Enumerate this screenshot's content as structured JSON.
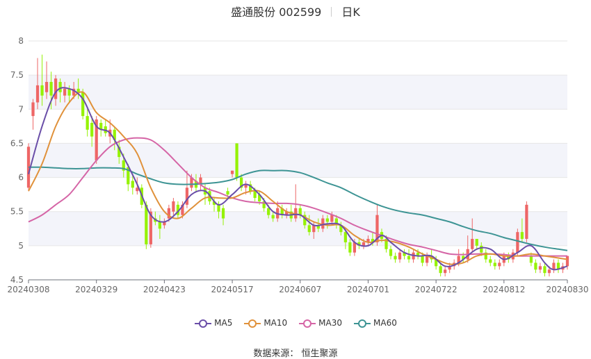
{
  "header": {
    "stock": "盛通股份 002599",
    "period": "日K"
  },
  "source": "数据来源： 恒生聚源",
  "colors": {
    "up": "#ee6666",
    "down": "#95f204",
    "ma5": "#6a4ea8",
    "ma10": "#e0913a",
    "ma30": "#d565a6",
    "ma60": "#3d9494"
  },
  "chart_data": {
    "type": "candlestick",
    "ylim": [
      4.5,
      8
    ],
    "yticks": [
      "4.5",
      "5",
      "5.5",
      "6",
      "6.5",
      "7",
      "7.5",
      "8"
    ],
    "xlabels": [
      "20240308",
      "20240329",
      "20240423",
      "20240517",
      "20240607",
      "20240701",
      "20240722",
      "20240812",
      "20240830"
    ],
    "xlabel_index": [
      0,
      15,
      30,
      45,
      60,
      75,
      90,
      105,
      119
    ],
    "n": 120,
    "legend": [
      "MA5",
      "MA10",
      "MA30",
      "MA60"
    ],
    "candles": [
      [
        5.85,
        6.45,
        5.8,
        6.5
      ],
      [
        6.9,
        7.1,
        6.7,
        7.15
      ],
      [
        7.1,
        7.35,
        7.0,
        7.75
      ],
      [
        7.35,
        7.2,
        7.05,
        7.8
      ],
      [
        7.25,
        7.4,
        7.15,
        7.7
      ],
      [
        7.4,
        7.2,
        7.0,
        7.55
      ],
      [
        7.15,
        7.45,
        7.05,
        7.5
      ],
      [
        7.4,
        7.25,
        7.1,
        7.45
      ],
      [
        7.2,
        7.3,
        7.1,
        7.4
      ],
      [
        7.3,
        7.2,
        7.1,
        7.35
      ],
      [
        7.2,
        7.3,
        7.15,
        7.4
      ],
      [
        7.3,
        7.25,
        7.15,
        7.45
      ],
      [
        7.25,
        6.9,
        6.85,
        7.3
      ],
      [
        6.9,
        6.7,
        6.6,
        7.0
      ],
      [
        6.8,
        6.6,
        6.45,
        6.9
      ],
      [
        6.25,
        6.85,
        6.2,
        6.9
      ],
      [
        6.8,
        6.7,
        6.6,
        6.85
      ],
      [
        6.75,
        6.65,
        6.6,
        6.85
      ],
      [
        6.6,
        6.7,
        6.5,
        6.85
      ],
      [
        6.7,
        6.55,
        6.4,
        6.75
      ],
      [
        6.45,
        6.3,
        6.2,
        6.55
      ],
      [
        6.25,
        6.1,
        6.0,
        6.35
      ],
      [
        6.15,
        5.9,
        5.8,
        6.2
      ],
      [
        5.95,
        5.85,
        5.75,
        6.05
      ],
      [
        5.8,
        5.85,
        5.75,
        6.0
      ],
      [
        5.85,
        5.6,
        5.55,
        5.9
      ],
      [
        5.6,
        5.02,
        4.95,
        5.65
      ],
      [
        5.02,
        5.5,
        4.97,
        5.55
      ],
      [
        5.4,
        5.35,
        5.3,
        5.5
      ],
      [
        5.35,
        5.25,
        5.1,
        5.45
      ],
      [
        5.3,
        5.35,
        5.25,
        5.4
      ],
      [
        5.4,
        5.55,
        5.35,
        5.6
      ],
      [
        5.5,
        5.65,
        5.45,
        5.7
      ],
      [
        5.6,
        5.45,
        5.4,
        5.65
      ],
      [
        5.45,
        5.6,
        5.4,
        5.65
      ],
      [
        5.6,
        5.85,
        5.55,
        6.1
      ],
      [
        5.85,
        6.0,
        5.8,
        6.05
      ],
      [
        5.95,
        5.85,
        5.8,
        6.05
      ],
      [
        5.9,
        6.0,
        5.8,
        6.05
      ],
      [
        5.85,
        5.75,
        5.6,
        5.9
      ],
      [
        5.8,
        5.65,
        5.6,
        5.85
      ],
      [
        5.65,
        5.6,
        5.5,
        5.7
      ],
      [
        5.6,
        5.5,
        5.4,
        5.65
      ],
      [
        5.55,
        5.4,
        5.3,
        5.6
      ],
      [
        5.8,
        5.75,
        5.7,
        5.85
      ],
      [
        6.05,
        6.1,
        6.0,
        6.1
      ],
      [
        6.5,
        6.0,
        5.95,
        6.5
      ],
      [
        6.0,
        5.85,
        5.8,
        6.05
      ],
      [
        5.85,
        5.9,
        5.75,
        5.95
      ],
      [
        5.9,
        5.8,
        5.75,
        5.95
      ],
      [
        5.8,
        5.7,
        5.65,
        5.85
      ],
      [
        5.75,
        5.65,
        5.6,
        5.8
      ],
      [
        5.65,
        5.55,
        5.5,
        5.7
      ],
      [
        5.55,
        5.45,
        5.4,
        5.6
      ],
      [
        5.45,
        5.4,
        5.35,
        5.5
      ],
      [
        5.4,
        5.55,
        5.35,
        5.65
      ],
      [
        5.55,
        5.45,
        5.4,
        5.6
      ],
      [
        5.45,
        5.5,
        5.4,
        5.55
      ],
      [
        5.5,
        5.4,
        5.35,
        5.6
      ],
      [
        5.4,
        5.55,
        5.35,
        5.9
      ],
      [
        5.55,
        5.45,
        5.4,
        5.6
      ],
      [
        5.45,
        5.3,
        5.25,
        5.5
      ],
      [
        5.3,
        5.2,
        5.15,
        5.45
      ],
      [
        5.2,
        5.3,
        5.1,
        5.35
      ],
      [
        5.3,
        5.25,
        5.2,
        5.4
      ],
      [
        5.25,
        5.4,
        5.2,
        5.45
      ],
      [
        5.4,
        5.35,
        5.25,
        5.45
      ],
      [
        5.35,
        5.45,
        5.3,
        5.5
      ],
      [
        5.4,
        5.3,
        5.25,
        5.45
      ],
      [
        5.3,
        5.2,
        5.15,
        5.35
      ],
      [
        5.2,
        5.05,
        4.95,
        5.25
      ],
      [
        5.05,
        4.9,
        4.85,
        5.1
      ],
      [
        4.9,
        5.05,
        4.85,
        5.1
      ],
      [
        5.05,
        5.0,
        4.95,
        5.1
      ],
      [
        5.0,
        5.05,
        4.95,
        5.1
      ],
      [
        5.05,
        5.1,
        5.0,
        5.15
      ],
      [
        5.1,
        5.05,
        5.0,
        5.2
      ],
      [
        5.05,
        5.45,
        5.0,
        5.6
      ],
      [
        5.2,
        5.1,
        5.05,
        5.25
      ],
      [
        5.1,
        4.95,
        4.9,
        5.15
      ],
      [
        4.95,
        4.85,
        4.8,
        5.0
      ],
      [
        4.85,
        4.8,
        4.75,
        4.9
      ],
      [
        4.8,
        4.9,
        4.75,
        4.95
      ],
      [
        4.9,
        4.85,
        4.8,
        4.95
      ],
      [
        4.85,
        4.8,
        4.75,
        4.95
      ],
      [
        4.8,
        4.9,
        4.75,
        4.95
      ],
      [
        4.9,
        4.85,
        4.8,
        4.95
      ],
      [
        4.85,
        4.75,
        4.7,
        4.9
      ],
      [
        4.75,
        4.85,
        4.7,
        4.9
      ],
      [
        4.85,
        4.8,
        4.75,
        4.95
      ],
      [
        4.8,
        4.7,
        4.65,
        4.85
      ],
      [
        4.7,
        4.6,
        4.55,
        4.75
      ],
      [
        4.6,
        4.65,
        4.55,
        4.7
      ],
      [
        4.65,
        4.7,
        4.6,
        4.75
      ],
      [
        4.7,
        4.75,
        4.65,
        4.8
      ],
      [
        4.75,
        4.85,
        4.7,
        4.95
      ],
      [
        4.85,
        4.8,
        4.75,
        4.9
      ],
      [
        4.8,
        4.95,
        4.75,
        5.15
      ],
      [
        4.95,
        5.1,
        4.9,
        5.4
      ],
      [
        5.1,
        5.0,
        4.95,
        5.1
      ],
      [
        5.0,
        4.9,
        4.85,
        5.05
      ],
      [
        4.9,
        4.8,
        4.75,
        4.95
      ],
      [
        4.8,
        4.75,
        4.7,
        4.85
      ],
      [
        4.75,
        4.7,
        4.65,
        4.8
      ],
      [
        4.7,
        4.75,
        4.65,
        4.8
      ],
      [
        4.75,
        4.85,
        4.7,
        4.9
      ],
      [
        4.85,
        4.8,
        4.75,
        4.9
      ],
      [
        4.8,
        4.9,
        4.75,
        4.95
      ],
      [
        4.9,
        5.2,
        4.85,
        5.25
      ],
      [
        5.2,
        5.1,
        5.05,
        5.4
      ],
      [
        5.1,
        5.6,
        5.05,
        5.65
      ],
      [
        4.85,
        4.75,
        4.7,
        4.9
      ],
      [
        4.75,
        4.65,
        4.6,
        4.8
      ],
      [
        4.65,
        4.7,
        4.6,
        4.75
      ],
      [
        4.7,
        4.6,
        4.55,
        4.75
      ],
      [
        4.6,
        4.65,
        4.55,
        4.7
      ],
      [
        4.65,
        4.75,
        4.6,
        4.8
      ],
      [
        4.75,
        4.65,
        4.6,
        4.8
      ],
      [
        4.65,
        4.7,
        4.6,
        4.75
      ],
      [
        4.7,
        4.85,
        4.65,
        4.85
      ]
    ],
    "ma5": [
      [
        0,
        6.05
      ],
      [
        3,
        6.75
      ],
      [
        6,
        7.25
      ],
      [
        9,
        7.3
      ],
      [
        12,
        7.15
      ],
      [
        15,
        6.75
      ],
      [
        18,
        6.65
      ],
      [
        21,
        6.3
      ],
      [
        24,
        5.9
      ],
      [
        27,
        5.45
      ],
      [
        30,
        5.35
      ],
      [
        33,
        5.5
      ],
      [
        36,
        5.75
      ],
      [
        39,
        5.8
      ],
      [
        42,
        5.6
      ],
      [
        45,
        5.75
      ],
      [
        48,
        5.9
      ],
      [
        51,
        5.75
      ],
      [
        54,
        5.5
      ],
      [
        57,
        5.45
      ],
      [
        60,
        5.45
      ],
      [
        63,
        5.3
      ],
      [
        66,
        5.32
      ],
      [
        69,
        5.3
      ],
      [
        72,
        5.05
      ],
      [
        75,
        5.0
      ],
      [
        78,
        5.15
      ],
      [
        80,
        5.05
      ],
      [
        83,
        4.9
      ],
      [
        86,
        4.85
      ],
      [
        89,
        4.85
      ],
      [
        92,
        4.7
      ],
      [
        95,
        4.75
      ],
      [
        99,
        4.95
      ],
      [
        102,
        4.95
      ],
      [
        105,
        4.8
      ],
      [
        108,
        4.9
      ],
      [
        111,
        5.0
      ],
      [
        114,
        4.75
      ],
      [
        116,
        4.65
      ],
      [
        119,
        4.7
      ]
    ],
    "ma10": [
      [
        0,
        5.8
      ],
      [
        3,
        6.2
      ],
      [
        6,
        6.75
      ],
      [
        9,
        7.1
      ],
      [
        12,
        7.25
      ],
      [
        15,
        6.95
      ],
      [
        18,
        6.8
      ],
      [
        21,
        6.6
      ],
      [
        24,
        6.35
      ],
      [
        27,
        5.85
      ],
      [
        30,
        5.5
      ],
      [
        33,
        5.4
      ],
      [
        36,
        5.55
      ],
      [
        39,
        5.7
      ],
      [
        42,
        5.7
      ],
      [
        45,
        5.7
      ],
      [
        48,
        5.78
      ],
      [
        51,
        5.8
      ],
      [
        54,
        5.65
      ],
      [
        57,
        5.5
      ],
      [
        60,
        5.45
      ],
      [
        63,
        5.35
      ],
      [
        66,
        5.3
      ],
      [
        69,
        5.3
      ],
      [
        72,
        5.15
      ],
      [
        75,
        5.05
      ],
      [
        78,
        5.08
      ],
      [
        81,
        5.05
      ],
      [
        84,
        4.98
      ],
      [
        87,
        4.88
      ],
      [
        90,
        4.8
      ],
      [
        93,
        4.73
      ],
      [
        96,
        4.75
      ],
      [
        99,
        4.85
      ],
      [
        102,
        4.88
      ],
      [
        105,
        4.85
      ],
      [
        108,
        4.85
      ],
      [
        111,
        4.88
      ],
      [
        114,
        4.85
      ],
      [
        117,
        4.82
      ],
      [
        119,
        4.8
      ]
    ],
    "ma30": [
      [
        0,
        5.35
      ],
      [
        3,
        5.45
      ],
      [
        6,
        5.6
      ],
      [
        9,
        5.75
      ],
      [
        12,
        6.0
      ],
      [
        15,
        6.25
      ],
      [
        18,
        6.45
      ],
      [
        21,
        6.55
      ],
      [
        24,
        6.58
      ],
      [
        27,
        6.55
      ],
      [
        30,
        6.4
      ],
      [
        33,
        6.2
      ],
      [
        36,
        6.0
      ],
      [
        39,
        5.85
      ],
      [
        42,
        5.78
      ],
      [
        45,
        5.7
      ],
      [
        48,
        5.65
      ],
      [
        51,
        5.63
      ],
      [
        54,
        5.62
      ],
      [
        57,
        5.62
      ],
      [
        60,
        5.6
      ],
      [
        63,
        5.55
      ],
      [
        66,
        5.48
      ],
      [
        69,
        5.4
      ],
      [
        72,
        5.3
      ],
      [
        75,
        5.22
      ],
      [
        78,
        5.15
      ],
      [
        81,
        5.08
      ],
      [
        84,
        5.02
      ],
      [
        87,
        4.98
      ],
      [
        90,
        4.93
      ],
      [
        93,
        4.88
      ],
      [
        96,
        4.87
      ],
      [
        99,
        4.88
      ],
      [
        102,
        4.88
      ],
      [
        105,
        4.87
      ],
      [
        108,
        4.85
      ],
      [
        111,
        4.85
      ],
      [
        114,
        4.85
      ],
      [
        117,
        4.85
      ],
      [
        119,
        4.85
      ]
    ],
    "ma60": [
      [
        0,
        6.15
      ],
      [
        3,
        6.15
      ],
      [
        6,
        6.14
      ],
      [
        9,
        6.13
      ],
      [
        12,
        6.13
      ],
      [
        15,
        6.14
      ],
      [
        18,
        6.14
      ],
      [
        21,
        6.13
      ],
      [
        24,
        6.05
      ],
      [
        27,
        5.98
      ],
      [
        30,
        5.92
      ],
      [
        33,
        5.9
      ],
      [
        36,
        5.9
      ],
      [
        39,
        5.91
      ],
      [
        42,
        5.93
      ],
      [
        45,
        5.97
      ],
      [
        48,
        6.05
      ],
      [
        51,
        6.1
      ],
      [
        54,
        6.1
      ],
      [
        57,
        6.1
      ],
      [
        60,
        6.07
      ],
      [
        63,
        6.0
      ],
      [
        66,
        5.92
      ],
      [
        69,
        5.85
      ],
      [
        72,
        5.75
      ],
      [
        75,
        5.66
      ],
      [
        78,
        5.58
      ],
      [
        81,
        5.52
      ],
      [
        84,
        5.48
      ],
      [
        87,
        5.45
      ],
      [
        90,
        5.4
      ],
      [
        93,
        5.35
      ],
      [
        96,
        5.28
      ],
      [
        99,
        5.22
      ],
      [
        102,
        5.18
      ],
      [
        105,
        5.12
      ],
      [
        108,
        5.07
      ],
      [
        111,
        5.02
      ],
      [
        114,
        4.98
      ],
      [
        117,
        4.95
      ],
      [
        119,
        4.93
      ]
    ]
  }
}
